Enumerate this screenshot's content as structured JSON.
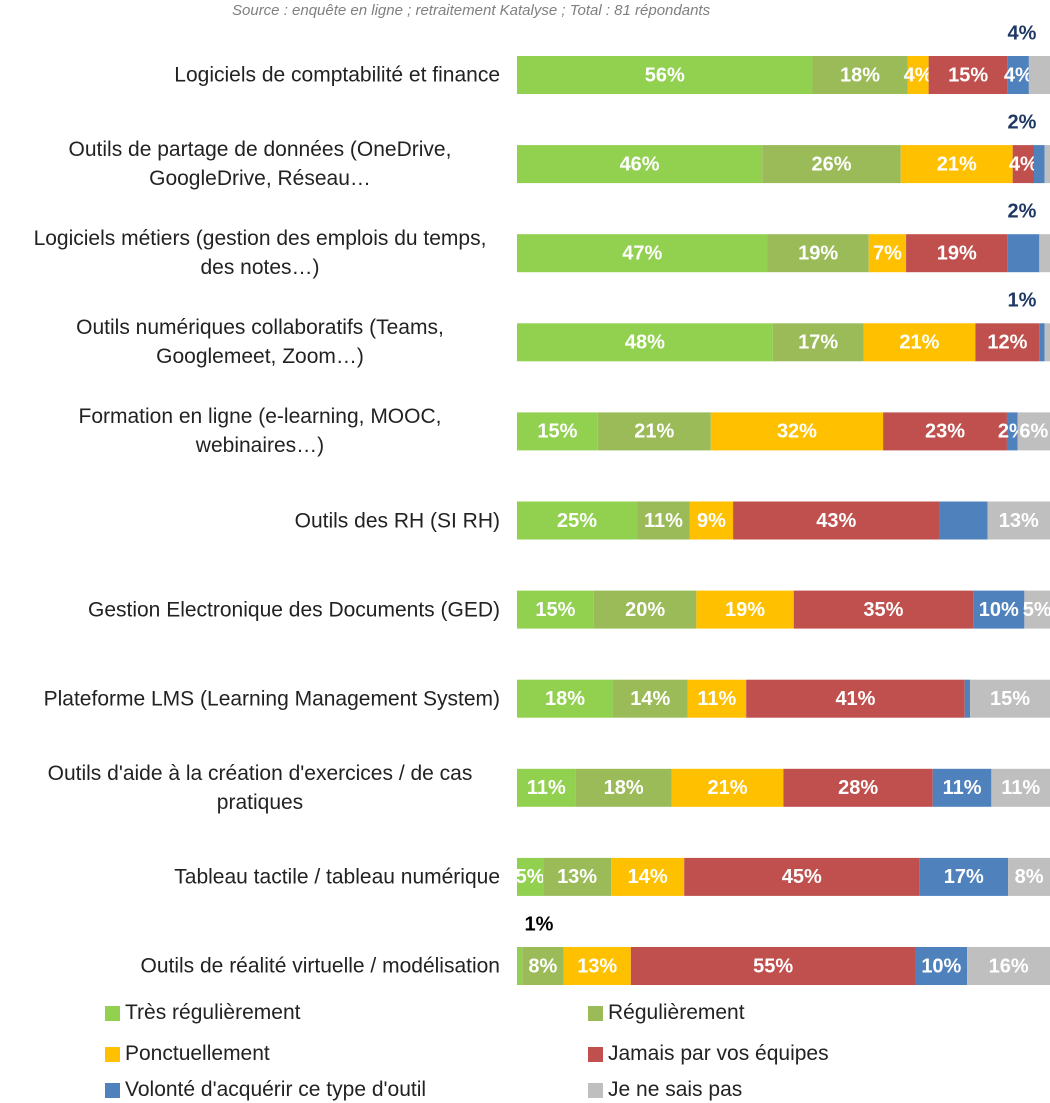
{
  "chart_data": {
    "type": "bar",
    "orientation": "horizontal",
    "stacked": true,
    "subtitle": "Source : enquête en ligne ; retraitement Katalyse ; Total : 81 répondants",
    "categories": [
      "Logiciels de comptabilité et finance",
      "Outils de partage de données (OneDrive, GoogleDrive, Réseau…",
      "Logiciels métiers (gestion des emplois du temps, des notes…)",
      "Outils numériques collaboratifs (Teams, Googlemeet, Zoom…)",
      "Formation en ligne (e-learning, MOOC, webinaires…)",
      "Outils des RH (SI RH)",
      "Gestion Electronique des Documents (GED)",
      "Plateforme LMS (Learning Management System)",
      "Outils d'aide à la création d'exercices / de cas pratiques",
      "Tableau tactile / tableau numérique",
      "Outils de réalité virtuelle / modélisation"
    ],
    "series": [
      {
        "name": "Très régulièrement",
        "color": "#92d050",
        "values": [
          56,
          46,
          47,
          48,
          15,
          25,
          15,
          18,
          11,
          5,
          1
        ],
        "value_labels": [
          "56%",
          "46%",
          "47%",
          "48%",
          "15%",
          "25%",
          "15%",
          "18%",
          "11%",
          "5%",
          "1%"
        ]
      },
      {
        "name": "Régulièrement",
        "color": "#9bbb59",
        "values": [
          18,
          26,
          19,
          17,
          21,
          11,
          20,
          14,
          18,
          13,
          8
        ],
        "value_labels": [
          "18%",
          "26%",
          "19%",
          "17%",
          "21%",
          "11%",
          "20%",
          "14%",
          "18%",
          "13%",
          "8%"
        ]
      },
      {
        "name": "Ponctuellement",
        "color": "#ffc000",
        "values": [
          4,
          21,
          7,
          21,
          32,
          9,
          19,
          11,
          21,
          14,
          13
        ],
        "value_labels": [
          "4%",
          "21%",
          "7%",
          "21%",
          "32%",
          "9%",
          "19%",
          "11%",
          "21%",
          "14%",
          "13%"
        ]
      },
      {
        "name": "Jamais par vos équipes",
        "color": "#c0504d",
        "values": [
          15,
          4,
          19,
          12,
          23,
          43,
          35,
          41,
          28,
          45,
          55
        ],
        "value_labels": [
          "15%",
          "4%",
          "19%",
          "12%",
          "23%",
          "43%",
          "35%",
          "41%",
          "28%",
          "45%",
          "55%"
        ]
      },
      {
        "name": "Volonté d'acquérir ce type d'outil",
        "color": "#4f81bd",
        "values": [
          4,
          2,
          6,
          1,
          2,
          10,
          10,
          1,
          11,
          17,
          10
        ],
        "value_labels": [
          "4%",
          "2%",
          null,
          "1%",
          "2%",
          null,
          "10%",
          null,
          "11%",
          "17%",
          "10%"
        ]
      },
      {
        "name": "Je ne sais pas",
        "color": "#bfbfbf",
        "values": [
          4,
          1,
          2,
          1,
          6,
          13,
          5,
          15,
          11,
          8,
          16
        ],
        "value_labels": [
          "4%",
          null,
          "2%",
          null,
          "6%",
          "13%",
          "5%",
          "15%",
          "11%",
          "8%",
          "16%"
        ]
      }
    ]
  }
}
